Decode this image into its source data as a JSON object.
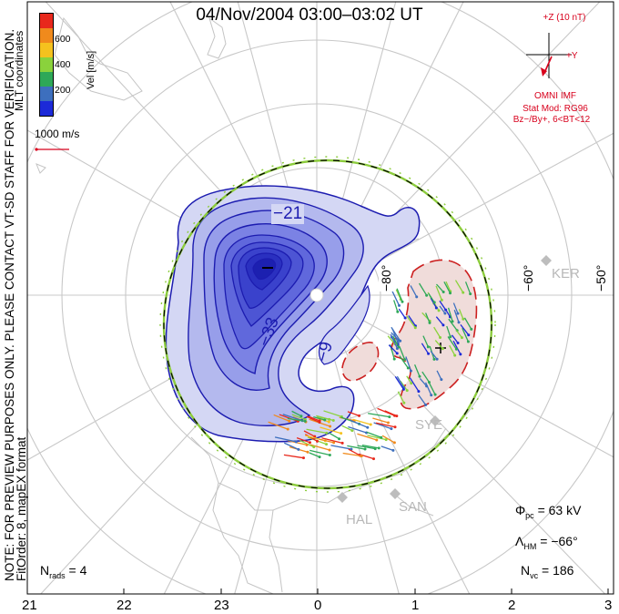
{
  "title": "04/Nov/2004 03:00–03:02 UT",
  "side_note": {
    "line1": "NOTE: FOR PREVIEW PURPOSES ONLY. PLEASE CONTACT VT-SD STAFF FOR VERIFICATION.",
    "line2": "FitOrder: 8, mapEX format"
  },
  "coord_label": "MLT coordinates",
  "colorbar": {
    "label": "Vel [m/s]",
    "ticks": [
      "600",
      "400",
      "200"
    ],
    "colors": [
      "#e8281c",
      "#f08a1c",
      "#f5c21e",
      "#8ad23c",
      "#2ea858",
      "#3d6fbe",
      "#1c2ad8"
    ]
  },
  "scale_vector": "1000 m/s",
  "imf": {
    "axis_z": "+Z (10 nT)",
    "axis_y": "+Y",
    "source": "OMNI IMF",
    "model": "Stat Mod: RG96",
    "condition": "Bz−/By+, 6<BT<12"
  },
  "contour_labels": [
    "−21",
    "−33",
    "−9"
  ],
  "latitude_labels": [
    "−80°",
    "−60°",
    "−50°"
  ],
  "stations": [
    "KER",
    "SYE",
    "HAL",
    "SAN"
  ],
  "stats": {
    "phi_symbol": "Φ",
    "phi_sub": "pc",
    "phi_value": "= 63 kV",
    "lambda_symbol": "Λ",
    "lambda_sub": "HM",
    "lambda_value": "= −66°",
    "nvc_symbol": "N",
    "nvc_sub": "vc",
    "nvc_value": "= 186",
    "nrads_symbol": "N",
    "nrads_sub": "rads",
    "nrads_value": "= 4"
  },
  "mlt_ticks": [
    "21",
    "22",
    "23",
    "0",
    "1",
    "2",
    "3"
  ],
  "colors": {
    "negative_fill": "#3e49cf",
    "positive_fill": "#f0dcda",
    "negative_contour": "#1c1cb0",
    "positive_contour": "#cc2020",
    "boundary_green": "#8ccc3c",
    "map_grid": "#c8c8c8",
    "imf_red": "#d8001c"
  }
}
